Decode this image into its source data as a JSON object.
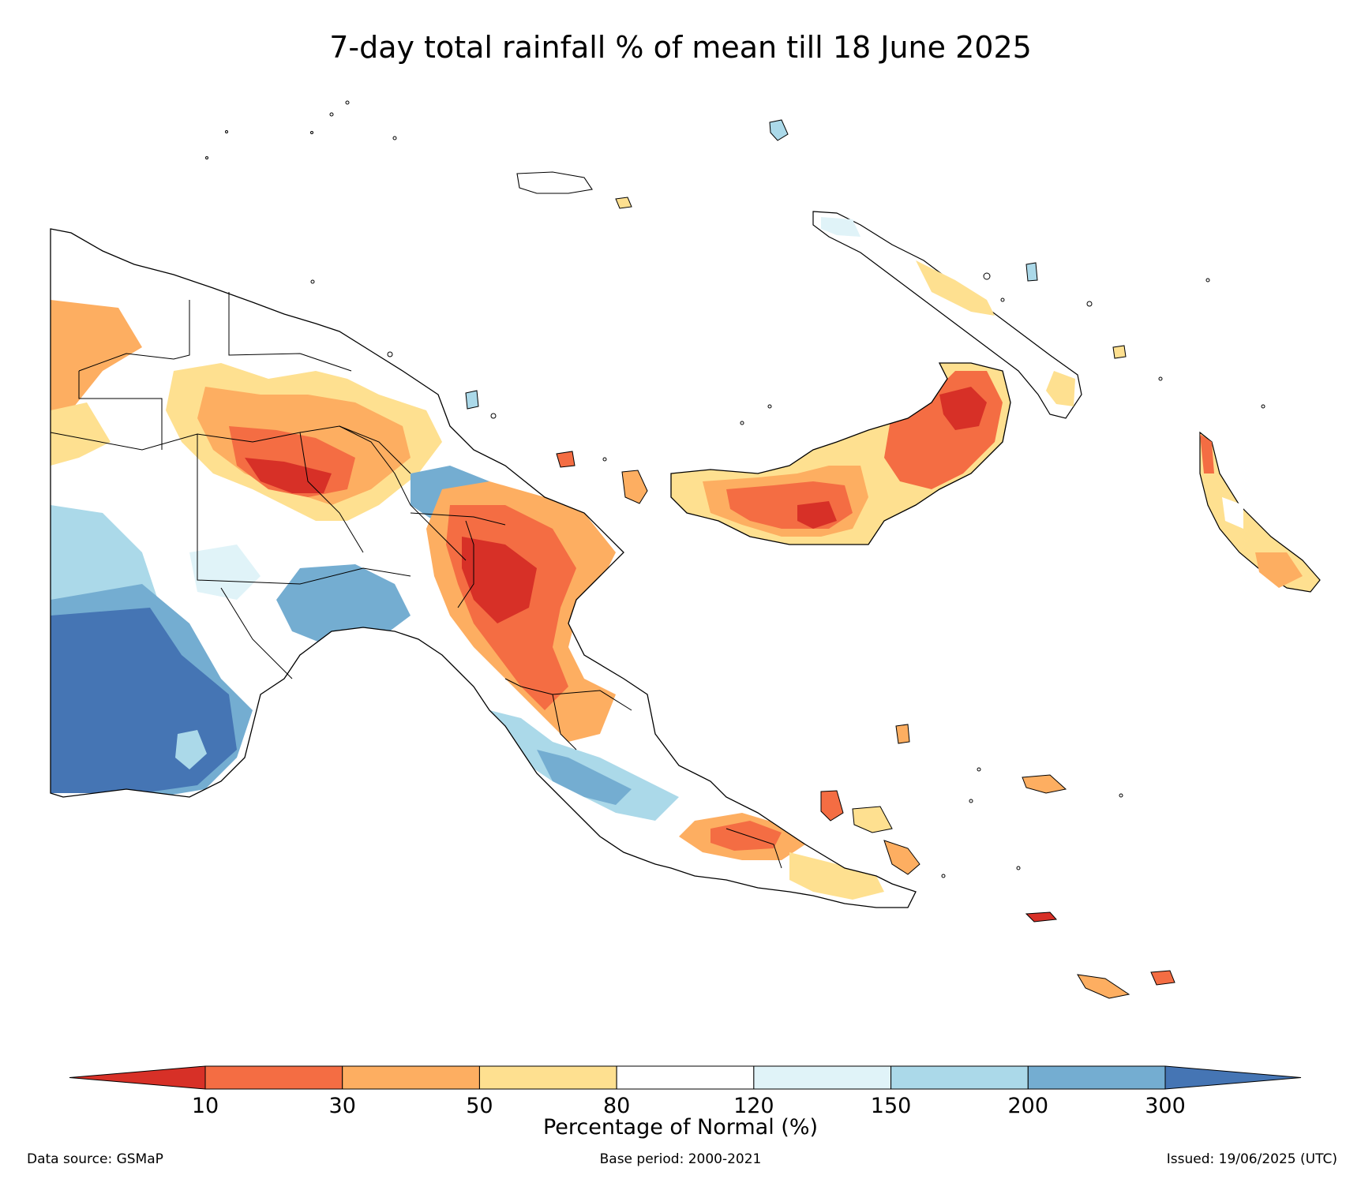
{
  "title": "7-day total rainfall % of mean till 18 June 2025",
  "colorbar": {
    "label": "Percentage of Normal (%)",
    "ticks": [
      "10",
      "30",
      "50",
      "80",
      "120",
      "150",
      "200",
      "300"
    ],
    "colors": {
      "under": "#d73027",
      "bins": [
        "#f46d43",
        "#fdae61",
        "#fee090",
        "#ffffff",
        "#e0f3f8",
        "#abd9e9",
        "#74add1"
      ],
      "over": "#4575b4"
    }
  },
  "footer": {
    "source": "Data source: GSMaP",
    "base_period": "Base period: 2000-2021",
    "issued": "Issued: 19/06/2025 (UTC)"
  },
  "map": {
    "region": "Papua New Guinea",
    "boundary_color": "#000000"
  }
}
